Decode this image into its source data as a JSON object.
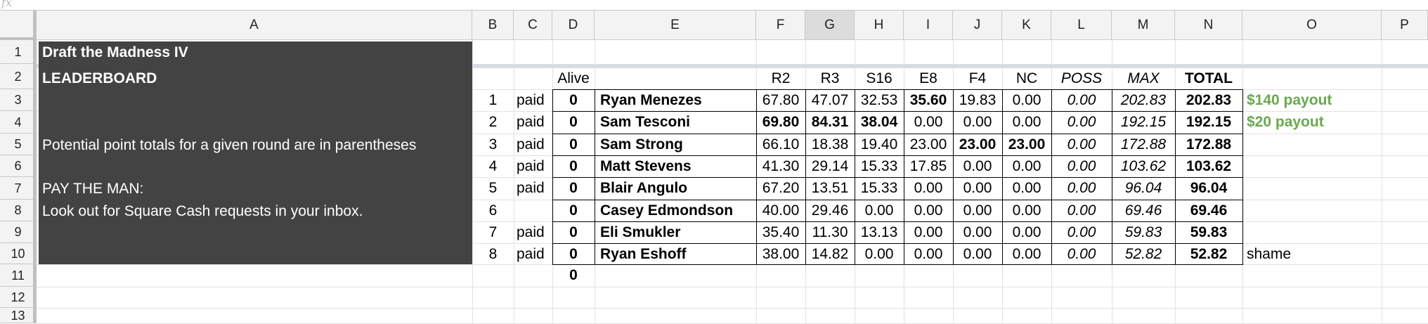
{
  "formula_bar": {
    "fx_label": "fx"
  },
  "columns": [
    "A",
    "B",
    "C",
    "D",
    "E",
    "F",
    "G",
    "H",
    "I",
    "J",
    "K",
    "L",
    "M",
    "N",
    "O",
    "P"
  ],
  "selected_column": "G",
  "rows": [
    "1",
    "2",
    "3",
    "4",
    "5",
    "6",
    "7",
    "8",
    "9",
    "10",
    "11",
    "12",
    "13"
  ],
  "sheet": {
    "title": "Draft the Madness IV",
    "leaderboard_label": "LEADERBOARD",
    "note_potential": "Potential point totals for a given round are in parentheses",
    "pay_heading": "PAY THE MAN:",
    "pay_note": "Look out for Square Cash requests in your inbox.",
    "alive_header": "Alive",
    "headers": {
      "r2": "R2",
      "r3": "R3",
      "s16": "S16",
      "e8": "E8",
      "f4": "F4",
      "nc": "NC",
      "poss": "POSS",
      "max": "MAX",
      "total": "TOTAL"
    },
    "alive_total": "0",
    "entries": [
      {
        "rank": "1",
        "paid": "paid",
        "alive": "0",
        "name": "Ryan Menezes",
        "r2": "67.80",
        "r3": "47.07",
        "s16": "32.53",
        "e8": "35.60",
        "f4": "19.83",
        "nc": "0.00",
        "poss": "0.00",
        "max": "202.83",
        "total": "202.83",
        "note": "$140 payout"
      },
      {
        "rank": "2",
        "paid": "paid",
        "alive": "0",
        "name": "Sam Tesconi",
        "r2": "69.80",
        "r3": "84.31",
        "s16": "38.04",
        "e8": "0.00",
        "f4": "0.00",
        "nc": "0.00",
        "poss": "0.00",
        "max": "192.15",
        "total": "192.15",
        "note": "$20 payout"
      },
      {
        "rank": "3",
        "paid": "paid",
        "alive": "0",
        "name": "Sam Strong",
        "r2": "66.10",
        "r3": "18.38",
        "s16": "19.40",
        "e8": "23.00",
        "f4": "23.00",
        "nc": "23.00",
        "poss": "0.00",
        "max": "172.88",
        "total": "172.88",
        "note": ""
      },
      {
        "rank": "4",
        "paid": "paid",
        "alive": "0",
        "name": "Matt Stevens",
        "r2": "41.30",
        "r3": "29.14",
        "s16": "15.33",
        "e8": "17.85",
        "f4": "0.00",
        "nc": "0.00",
        "poss": "0.00",
        "max": "103.62",
        "total": "103.62",
        "note": ""
      },
      {
        "rank": "5",
        "paid": "paid",
        "alive": "0",
        "name": "Blair Angulo",
        "r2": "67.20",
        "r3": "13.51",
        "s16": "15.33",
        "e8": "0.00",
        "f4": "0.00",
        "nc": "0.00",
        "poss": "0.00",
        "max": "96.04",
        "total": "96.04",
        "note": ""
      },
      {
        "rank": "6",
        "paid": "",
        "alive": "0",
        "name": "Casey Edmondson",
        "r2": "40.00",
        "r3": "29.46",
        "s16": "0.00",
        "e8": "0.00",
        "f4": "0.00",
        "nc": "0.00",
        "poss": "0.00",
        "max": "69.46",
        "total": "69.46",
        "note": ""
      },
      {
        "rank": "7",
        "paid": "paid",
        "alive": "0",
        "name": "Eli Smukler",
        "r2": "35.40",
        "r3": "11.30",
        "s16": "13.13",
        "e8": "0.00",
        "f4": "0.00",
        "nc": "0.00",
        "poss": "0.00",
        "max": "59.83",
        "total": "59.83",
        "note": ""
      },
      {
        "rank": "8",
        "paid": "paid",
        "alive": "0",
        "name": "Ryan Eshoff",
        "r2": "38.00",
        "r3": "14.82",
        "s16": "0.00",
        "e8": "0.00",
        "f4": "0.00",
        "nc": "0.00",
        "poss": "0.00",
        "max": "52.82",
        "total": "52.82",
        "note": "shame"
      }
    ],
    "bold_cells": {
      "0": [
        "e8"
      ],
      "1": [
        "r2",
        "r3",
        "s16"
      ],
      "2": [
        "f4",
        "nc"
      ]
    },
    "colors": {
      "dark_block": "#434343",
      "payout_green": "#6aa84f",
      "header_bg": "#f3f3f3",
      "selected_header_bg": "#dcdcdc"
    }
  }
}
